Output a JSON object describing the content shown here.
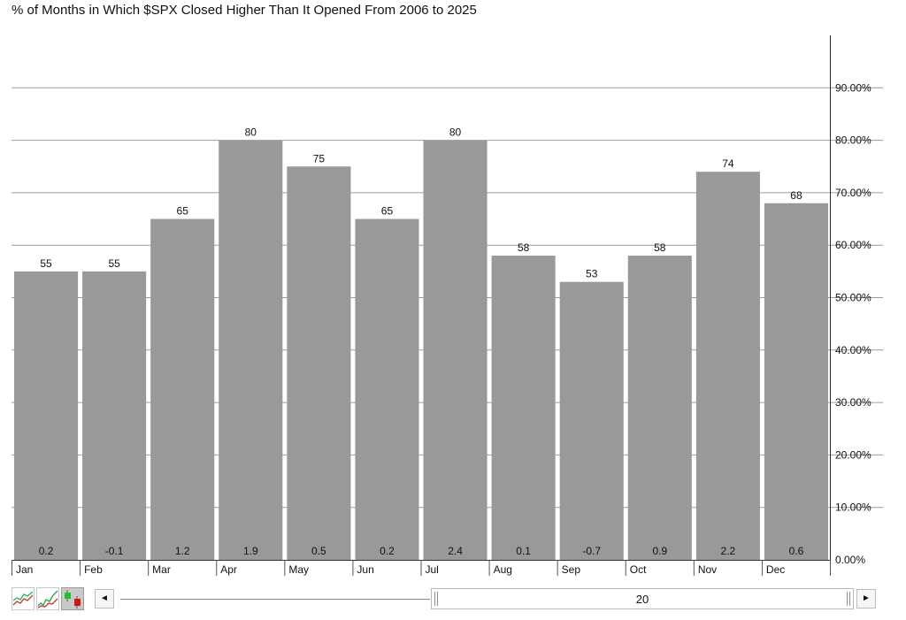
{
  "chart_data": {
    "type": "bar",
    "title": "% of Months in Which $SPX Closed Higher Than It Opened From 2006 to 2025",
    "categories": [
      "Jan",
      "Feb",
      "Mar",
      "Apr",
      "May",
      "Jun",
      "Jul",
      "Aug",
      "Sep",
      "Oct",
      "Nov",
      "Dec"
    ],
    "values": [
      55,
      55,
      65,
      80,
      75,
      65,
      80,
      58,
      53,
      58,
      74,
      68
    ],
    "bar_labels": [
      "55",
      "55",
      "65",
      "80",
      "75",
      "65",
      "80",
      "58",
      "53",
      "58",
      "74",
      "68"
    ],
    "bottom_labels": [
      "0.2",
      "-0.1",
      "1.2",
      "1.9",
      "0.5",
      "0.2",
      "2.4",
      "0.1",
      "-0.7",
      "0.9",
      "2.2",
      "0.6"
    ],
    "yticks": [
      0,
      10,
      20,
      30,
      40,
      50,
      60,
      70,
      80,
      90
    ],
    "ytick_labels": [
      "0.00%",
      "10.00%",
      "20.00%",
      "30.00%",
      "40.00%",
      "50.00%",
      "60.00%",
      "70.00%",
      "80.00%",
      "90.00%"
    ],
    "ylim": [
      0,
      100
    ],
    "y_axis_position": "right",
    "grid": true,
    "bar_color": "#999999",
    "grid_color": "#9c9c9c"
  },
  "toolbar": {
    "icons": [
      "line-chart-icon",
      "candlestick-chart-icon",
      "bar-chart-icon"
    ]
  },
  "scrollbar": {
    "left_arrow": "◄",
    "right_arrow": "►",
    "thumb_label": "20"
  }
}
